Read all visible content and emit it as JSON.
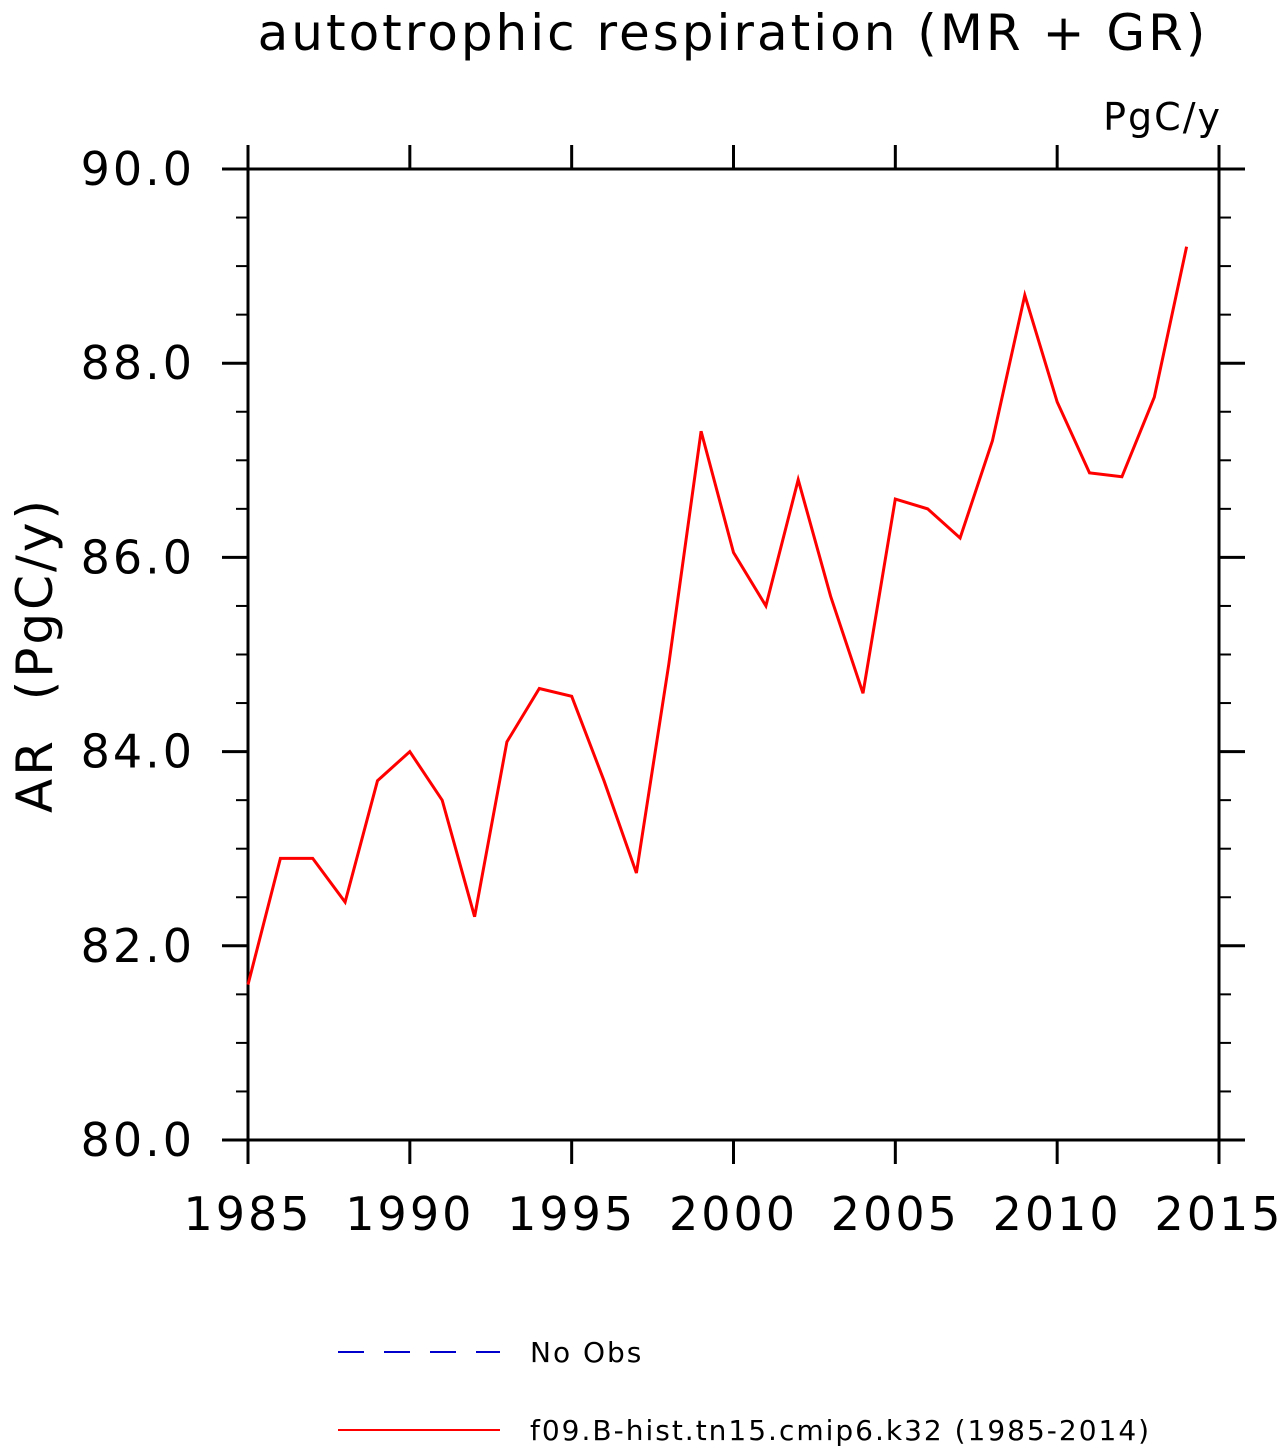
{
  "chart_data": {
    "type": "line",
    "title": "autotrophic respiration (MR + GR)",
    "units_label": "PgC/y",
    "xlabel": "",
    "ylabel": "AR  (PgC/y)",
    "xlim": [
      1985,
      2015
    ],
    "ylim": [
      80.0,
      90.0
    ],
    "x_ticks": [
      1985,
      1990,
      1995,
      2000,
      2005,
      2010,
      2015
    ],
    "x_tick_labels": [
      "1985",
      "1990",
      "1995",
      "2000",
      "2005",
      "2010",
      "2015"
    ],
    "y_ticks": [
      80.0,
      82.0,
      84.0,
      86.0,
      88.0,
      90.0
    ],
    "y_tick_labels": [
      "80.0",
      "82.0",
      "84.0",
      "86.0",
      "88.0",
      "90.0"
    ],
    "y_minor_step": 0.5,
    "grid": false,
    "legend_position": "bottom",
    "series": [
      {
        "name": "f09.B-hist.tn15.cmip6.k32 (1985-2014)",
        "color": "#ff0000",
        "style": "solid",
        "x": [
          1985,
          1986,
          1987,
          1988,
          1989,
          1990,
          1991,
          1992,
          1993,
          1994,
          1995,
          1996,
          1997,
          1998,
          1999,
          2000,
          2001,
          2002,
          2003,
          2004,
          2005,
          2006,
          2007,
          2008,
          2009,
          2010,
          2011,
          2012,
          2013,
          2014
        ],
        "values": [
          81.6,
          82.9,
          82.9,
          82.45,
          83.7,
          84.0,
          83.5,
          82.3,
          84.1,
          84.65,
          84.57,
          83.7,
          82.75,
          84.9,
          87.3,
          86.05,
          85.5,
          86.8,
          85.6,
          84.6,
          86.6,
          86.5,
          86.2,
          87.2,
          88.7,
          87.6,
          86.87,
          86.83,
          87.65,
          89.2
        ]
      }
    ],
    "legend": [
      {
        "label": "No Obs",
        "color": "#0000cc",
        "style": "dashed"
      },
      {
        "label": "f09.B-hist.tn15.cmip6.k32 (1985-2014)",
        "color": "#ff0000",
        "style": "solid"
      }
    ]
  }
}
